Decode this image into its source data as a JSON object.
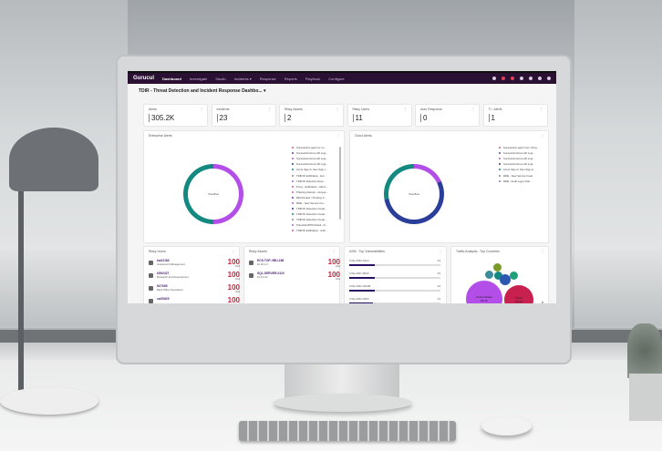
{
  "nav": {
    "logo": "Gurucul",
    "items": [
      "Dashboard",
      "Investigate",
      "Studio",
      "Incidents ▾",
      "Response",
      "Reports",
      "Playbook",
      "Configure"
    ],
    "active": "Dashboard",
    "icons": [
      "notification-icon",
      "alert-icon",
      "cases-icon",
      "help-icon",
      "settings-icon",
      "apps-icon",
      "user-icon"
    ]
  },
  "dashboard": {
    "title": "TDIR - Threat Detection and Incident Response Dashbo...",
    "chevron": "▾"
  },
  "kpis": [
    {
      "label": "Alerts",
      "value": "305.2K"
    },
    {
      "label": "Incidents",
      "value": "23"
    },
    {
      "label": "Risky Assets",
      "value": "2"
    },
    {
      "label": "Risky Users",
      "value": "11"
    },
    {
      "label": "Auto Response",
      "value": "0"
    },
    {
      "label": "TI - Alerts",
      "value": "1"
    }
  ],
  "enterprise": {
    "title": "Enterprise Alerts",
    "center": "Overflow",
    "colors": {
      "teal": "#14897f",
      "purple": "#b44ee8"
    },
    "legend": [
      "Successful Logins for mi...",
      "Successful Azure AD Logi...",
      "Successful Azure AD Logi...",
      "Successful Azure AD Logi...",
      "Azure Sign-In User Sign-i...",
      "TDIR RI Exfiltration - Ext...",
      "TDIR RI Detection Exec...",
      "Proxy - Exfiltration - Altern...",
      "Phishing Attempt - Access...",
      "MFA Denied / Pending S...",
      "MDE - New Service Cre...",
      "TDIR RI Detection Crede...",
      "TDIR RI Detection Crede...",
      "TDIR RI Detection Crede...",
      "Potential MITM Attack - R...",
      "TDIR RI Exfiltration - Auth..."
    ]
  },
  "cloud": {
    "title": "Cloud Alerts",
    "center": "Overflow",
    "colors": {
      "teal": "#14897f",
      "purple": "#b44ee8",
      "navy": "#2b3f9a"
    },
    "legend": [
      "Successful Logins from Untrg...",
      "Successful Azure AD Logi...",
      "Successful Azure AD Logi...",
      "Successful Azure AD Logi...",
      "Azure Sign-In User Sign-in...",
      "MDE - New Service Creat...",
      "MDE - Audit Logon Atte..."
    ]
  },
  "risky_users": {
    "title": "Risky Users",
    "rows": [
      {
        "id": "kw22183",
        "dept": "Investment Management",
        "role": "Investment Fund Manager",
        "score": "100",
        "risk": "Risk"
      },
      {
        "id": "U592427",
        "dept": "Research and Development",
        "role": "Principal Research Scientist",
        "score": "100",
        "risk": "Risk"
      },
      {
        "id": "N27089",
        "dept": "Back Office Operations",
        "role": "Director, Support Engineer",
        "score": "100",
        "risk": "Risk"
      },
      {
        "id": "cw20829",
        "dept": "",
        "role": "",
        "score": "100",
        "risk": ""
      }
    ]
  },
  "risky_assets": {
    "title": "Risky Assets",
    "rows": [
      {
        "id": "ECS-TOP-VBU-186",
        "ip": "10.20.1.6",
        "os": "ECS-CS",
        "score": "100",
        "risk": "Risk"
      },
      {
        "id": "SQL-SERVER-0119",
        "ip": "10.8.0.22",
        "os": "WINDOWS",
        "score": "100",
        "risk": "Risk"
      }
    ]
  },
  "asm": {
    "title": "ASM - Top Vulnerabilities",
    "rows": [
      {
        "cve": "CVE-2023-3412",
        "count": "23",
        "fill": 0.28
      },
      {
        "cve": "CVE-2007-0033",
        "count": "23",
        "fill": 0.28
      },
      {
        "cve": "CVE-2022-32208",
        "count": "23",
        "fill": 0.28
      },
      {
        "cve": "CVE-2022-3390",
        "count": "21",
        "fill": 0.26
      }
    ]
  },
  "traffic": {
    "title": "Traffic Analysis - Top Countries",
    "bubbles": [
      {
        "label": "United States",
        "value": "65.1K"
      },
      {
        "label": "China",
        "value": "25.4K"
      }
    ]
  }
}
